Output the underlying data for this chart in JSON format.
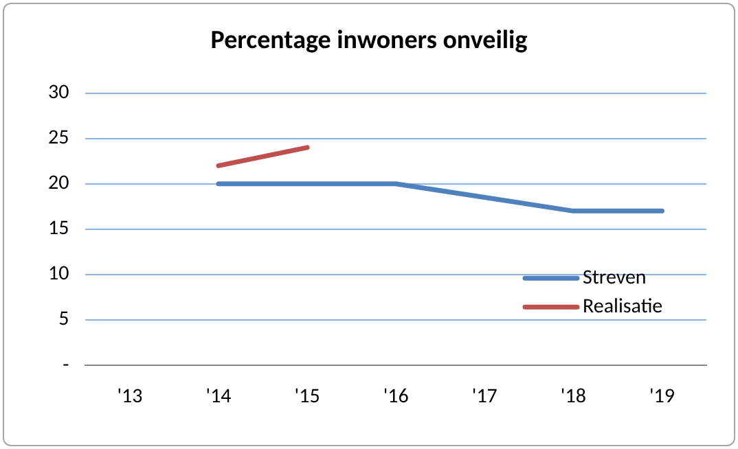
{
  "chart_data": {
    "type": "line",
    "title": "Percentage inwoners onveilig",
    "categories": [
      "'13",
      "'14",
      "'15",
      "'16",
      "'17",
      "'18",
      "'19"
    ],
    "series": [
      {
        "name": "Streven",
        "color": "#4f81bd",
        "values": [
          null,
          20,
          20,
          20,
          18.5,
          17,
          17
        ]
      },
      {
        "name": "Realisatie",
        "color": "#c0504d",
        "values": [
          null,
          22,
          24,
          null,
          null,
          null,
          null
        ]
      }
    ],
    "ylim": [
      0,
      30
    ],
    "yticks": [
      {
        "value": 0,
        "label": "-"
      },
      5,
      10,
      15,
      20,
      25,
      30
    ],
    "grid": "y",
    "legend": "right",
    "marker": "none",
    "line_style": "solid"
  }
}
